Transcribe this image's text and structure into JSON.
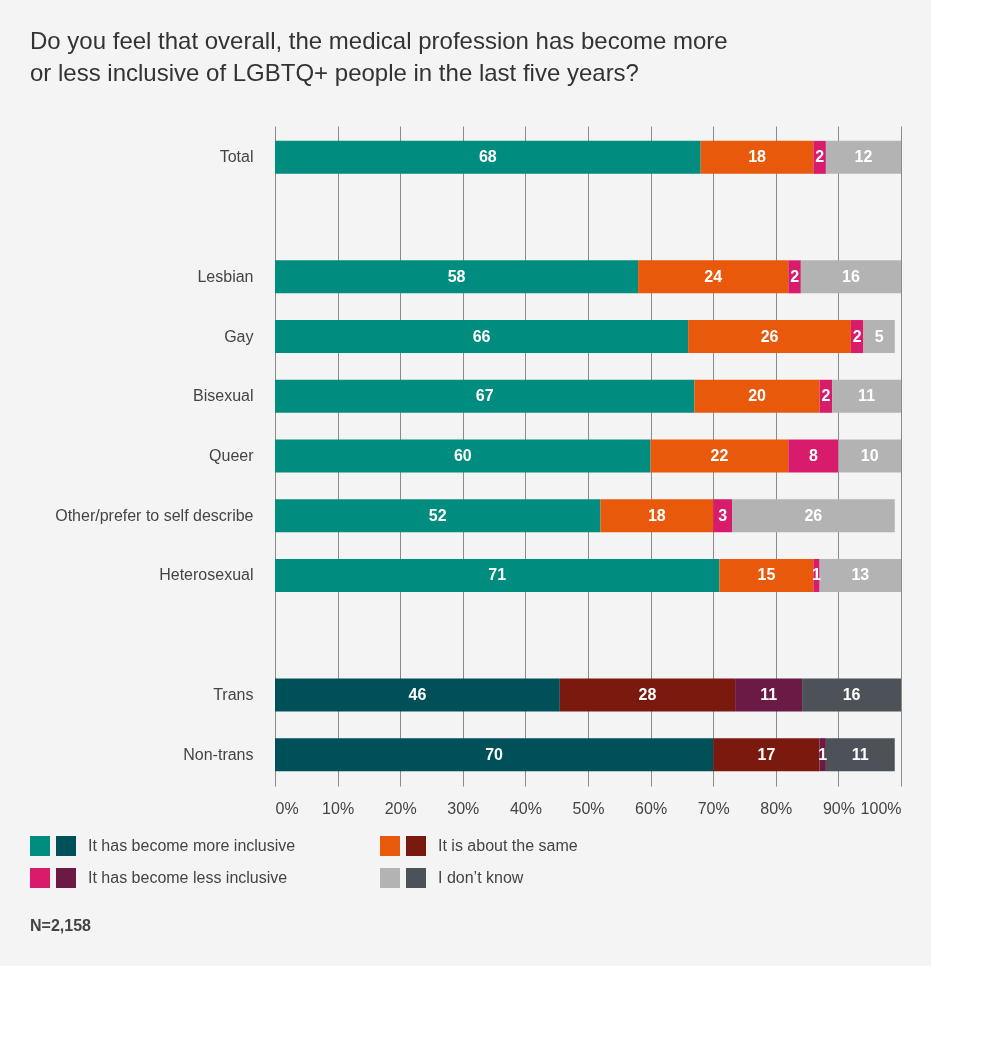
{
  "chart_data": {
    "type": "bar",
    "orientation": "horizontal",
    "stacked": true,
    "title": "Do you feel that overall, the medical profession has become more or less inclusive of LGBTQ+ people in the last five years?",
    "categories": [
      "Total",
      null,
      "Lesbian",
      "Gay",
      "Bisexual",
      "Queer",
      "Other/prefer to self describe",
      "Heterosexual",
      null,
      "Trans",
      "Non-trans"
    ],
    "series": [
      {
        "name": "It has become more inclusive",
        "color": "#008c7e",
        "colors": [
          "#008c7e",
          "#008c7e",
          "#008c7e",
          "#008c7e",
          "#008c7e",
          "#008c7e",
          "#008c7e",
          "#008c7e",
          "#008c7e",
          "#00505a",
          "#00505a"
        ],
        "values": [
          68,
          null,
          58,
          66,
          67,
          60,
          52,
          71,
          null,
          45.5,
          70
        ],
        "value_labels": [
          "68",
          null,
          "58",
          "66",
          "67",
          "60",
          "52",
          "71",
          null,
          "46",
          "70"
        ]
      },
      {
        "name": "It is about the same",
        "color": "#e8590c",
        "colors": [
          "#e8590c",
          "#e8590c",
          "#e8590c",
          "#e8590c",
          "#e8590c",
          "#e8590c",
          "#e8590c",
          "#e8590c",
          "#e8590c",
          "#7a1a0e",
          "#7a1a0e"
        ],
        "values": [
          18,
          null,
          24,
          26,
          20,
          22,
          18,
          15,
          null,
          28,
          17
        ],
        "value_labels": [
          "18",
          null,
          "24",
          "26",
          "20",
          "22",
          "18",
          "15",
          null,
          "28",
          "17"
        ]
      },
      {
        "name": "It has become less inclusive",
        "color": "#d81b6a",
        "colors": [
          "#d81b6a",
          "#d81b6a",
          "#d81b6a",
          "#d81b6a",
          "#d81b6a",
          "#d81b6a",
          "#d81b6a",
          "#d81b6a",
          "#d81b6a",
          "#6b1a45",
          "#6b1a45"
        ],
        "values": [
          2,
          null,
          2,
          2,
          2,
          8,
          3,
          1,
          null,
          10.7,
          1
        ],
        "value_labels": [
          "2",
          null,
          "2",
          "2",
          "2",
          "8",
          "3",
          "1",
          null,
          "11",
          "1"
        ]
      },
      {
        "name": "I don’t know",
        "color": "#b3b3b3",
        "colors": [
          "#b3b3b3",
          "#b3b3b3",
          "#b3b3b3",
          "#b3b3b3",
          "#b3b3b3",
          "#b3b3b3",
          "#b3b3b3",
          "#b3b3b3",
          "#b3b3b3",
          "#4d5258",
          "#4d5258"
        ],
        "values": [
          12,
          null,
          16,
          5,
          11,
          10,
          26,
          13,
          null,
          15.8,
          11
        ],
        "value_labels": [
          "12",
          null,
          "16",
          "5",
          "11",
          "10",
          "26",
          "13",
          null,
          "16",
          "11"
        ]
      }
    ],
    "xlim": [
      0,
      100
    ],
    "xticks": [
      {
        "value": 0,
        "label": "0%"
      },
      {
        "value": 10,
        "label": "10%"
      },
      {
        "value": 20,
        "label": "20%"
      },
      {
        "value": 30,
        "label": "30%"
      },
      {
        "value": 40,
        "label": "40%"
      },
      {
        "value": 50,
        "label": "50%"
      },
      {
        "value": 60,
        "label": "60%"
      },
      {
        "value": 70,
        "label": "70%"
      },
      {
        "value": 80,
        "label": "80%"
      },
      {
        "value": 90,
        "label": "90%"
      },
      {
        "value": 100,
        "label": "100%"
      }
    ],
    "grid": "x",
    "legend": "bottom",
    "annotations": [
      "N=2,158"
    ]
  }
}
